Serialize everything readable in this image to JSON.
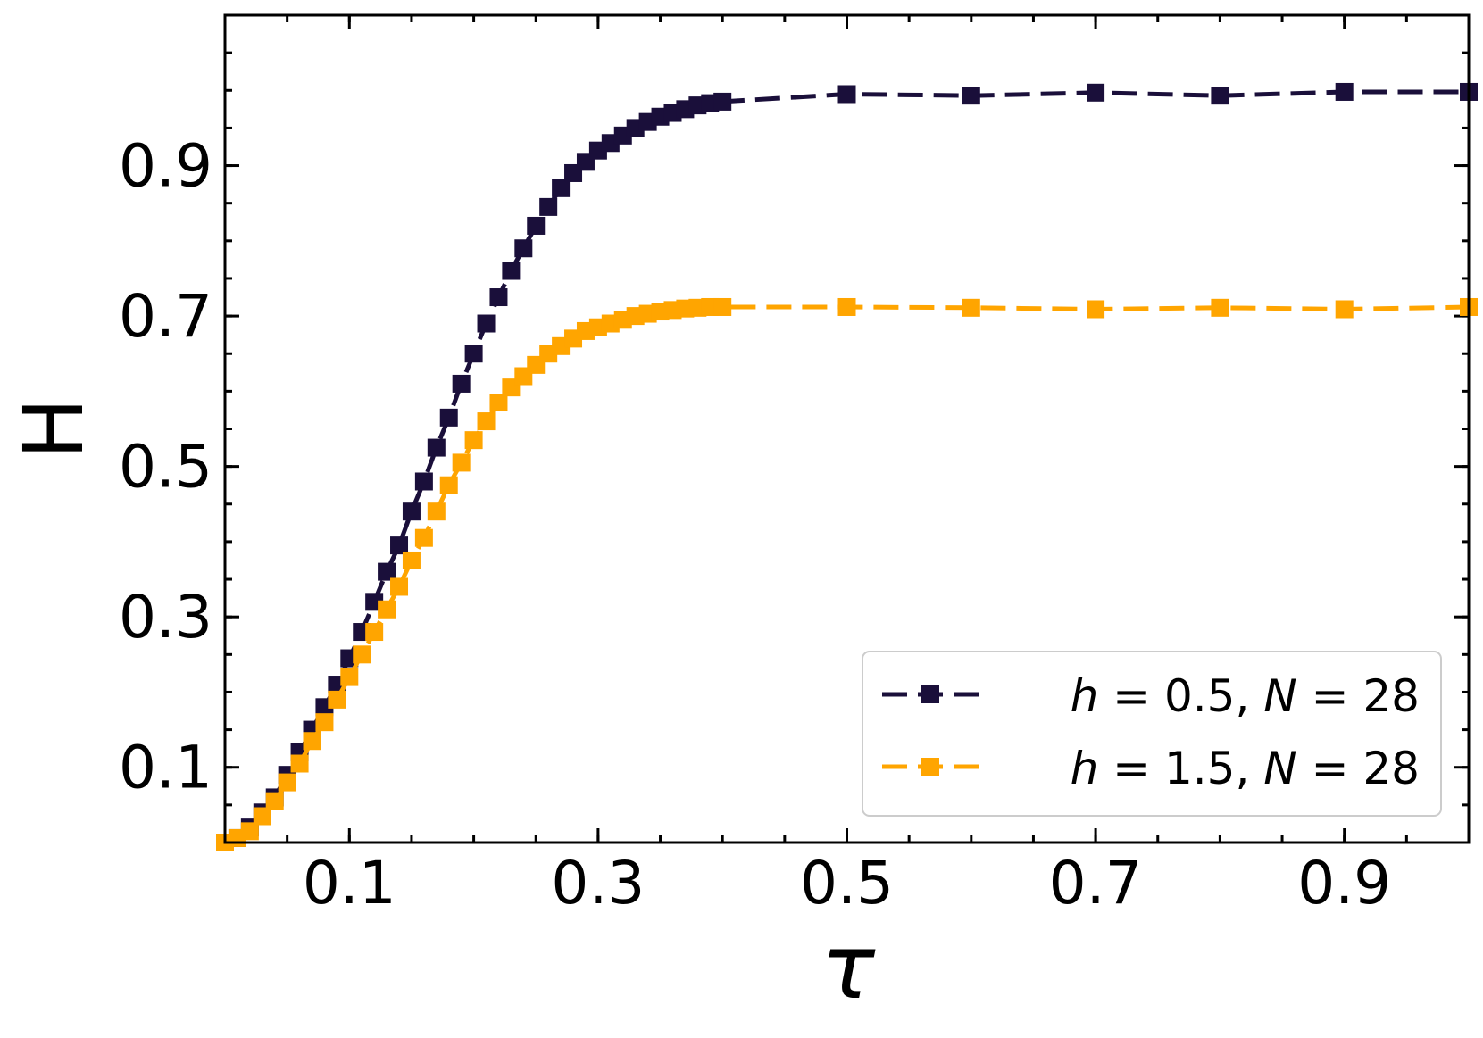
{
  "chart_data": {
    "type": "line",
    "xlabel": "τ",
    "ylabel": "H",
    "xlim": [
      0.0,
      1.0
    ],
    "ylim": [
      0.0,
      1.1
    ],
    "x_ticks": [
      0.1,
      0.3,
      0.5,
      0.7,
      0.9
    ],
    "x_tick_labels": [
      "0.1",
      "0.3",
      "0.5",
      "0.7",
      "0.9"
    ],
    "y_ticks": [
      0.1,
      0.3,
      0.5,
      0.7,
      0.9
    ],
    "y_tick_labels": [
      "0.1",
      "0.3",
      "0.5",
      "0.7",
      "0.9"
    ],
    "grid": false,
    "legend_position": "lower-right",
    "series": [
      {
        "name": "h = 0.5, N = 28",
        "legend": {
          "var1": "h",
          "val1": "0.5",
          "var2": "N",
          "val2": "28"
        },
        "color": "#1a0f3a",
        "line_style": "dashed",
        "marker": "square",
        "x": [
          0.0,
          0.01,
          0.02,
          0.03,
          0.04,
          0.05,
          0.06,
          0.07,
          0.08,
          0.09,
          0.1,
          0.11,
          0.12,
          0.13,
          0.14,
          0.15,
          0.16,
          0.17,
          0.18,
          0.19,
          0.2,
          0.21,
          0.22,
          0.23,
          0.24,
          0.25,
          0.26,
          0.27,
          0.28,
          0.29,
          0.3,
          0.31,
          0.32,
          0.33,
          0.34,
          0.35,
          0.36,
          0.37,
          0.38,
          0.39,
          0.4,
          0.5,
          0.6,
          0.7,
          0.8,
          0.9,
          1.0
        ],
        "y": [
          0.0,
          0.006,
          0.02,
          0.04,
          0.06,
          0.09,
          0.12,
          0.15,
          0.18,
          0.21,
          0.245,
          0.28,
          0.32,
          0.36,
          0.395,
          0.44,
          0.48,
          0.525,
          0.565,
          0.61,
          0.65,
          0.69,
          0.725,
          0.76,
          0.79,
          0.82,
          0.845,
          0.87,
          0.89,
          0.905,
          0.92,
          0.93,
          0.94,
          0.95,
          0.958,
          0.965,
          0.97,
          0.975,
          0.98,
          0.983,
          0.985,
          0.995,
          0.993,
          0.997,
          0.993,
          0.998,
          0.998
        ]
      },
      {
        "name": "h = 1.5, N = 28",
        "legend": {
          "var1": "h",
          "val1": "1.5",
          "var2": "N",
          "val2": "28"
        },
        "color": "#ffa500",
        "line_style": "dashed",
        "marker": "square",
        "x": [
          0.0,
          0.01,
          0.02,
          0.03,
          0.04,
          0.05,
          0.06,
          0.07,
          0.08,
          0.09,
          0.1,
          0.11,
          0.12,
          0.13,
          0.14,
          0.15,
          0.16,
          0.17,
          0.18,
          0.19,
          0.2,
          0.21,
          0.22,
          0.23,
          0.24,
          0.25,
          0.26,
          0.27,
          0.28,
          0.29,
          0.3,
          0.31,
          0.32,
          0.33,
          0.34,
          0.35,
          0.36,
          0.37,
          0.38,
          0.39,
          0.4,
          0.5,
          0.6,
          0.7,
          0.8,
          0.9,
          1.0
        ],
        "y": [
          0.0,
          0.006,
          0.015,
          0.035,
          0.055,
          0.08,
          0.105,
          0.135,
          0.16,
          0.19,
          0.22,
          0.25,
          0.28,
          0.31,
          0.34,
          0.375,
          0.405,
          0.44,
          0.475,
          0.505,
          0.535,
          0.56,
          0.585,
          0.605,
          0.62,
          0.635,
          0.65,
          0.66,
          0.67,
          0.68,
          0.685,
          0.69,
          0.695,
          0.7,
          0.703,
          0.706,
          0.708,
          0.71,
          0.711,
          0.712,
          0.712,
          0.712,
          0.711,
          0.709,
          0.711,
          0.709,
          0.712
        ]
      }
    ]
  }
}
